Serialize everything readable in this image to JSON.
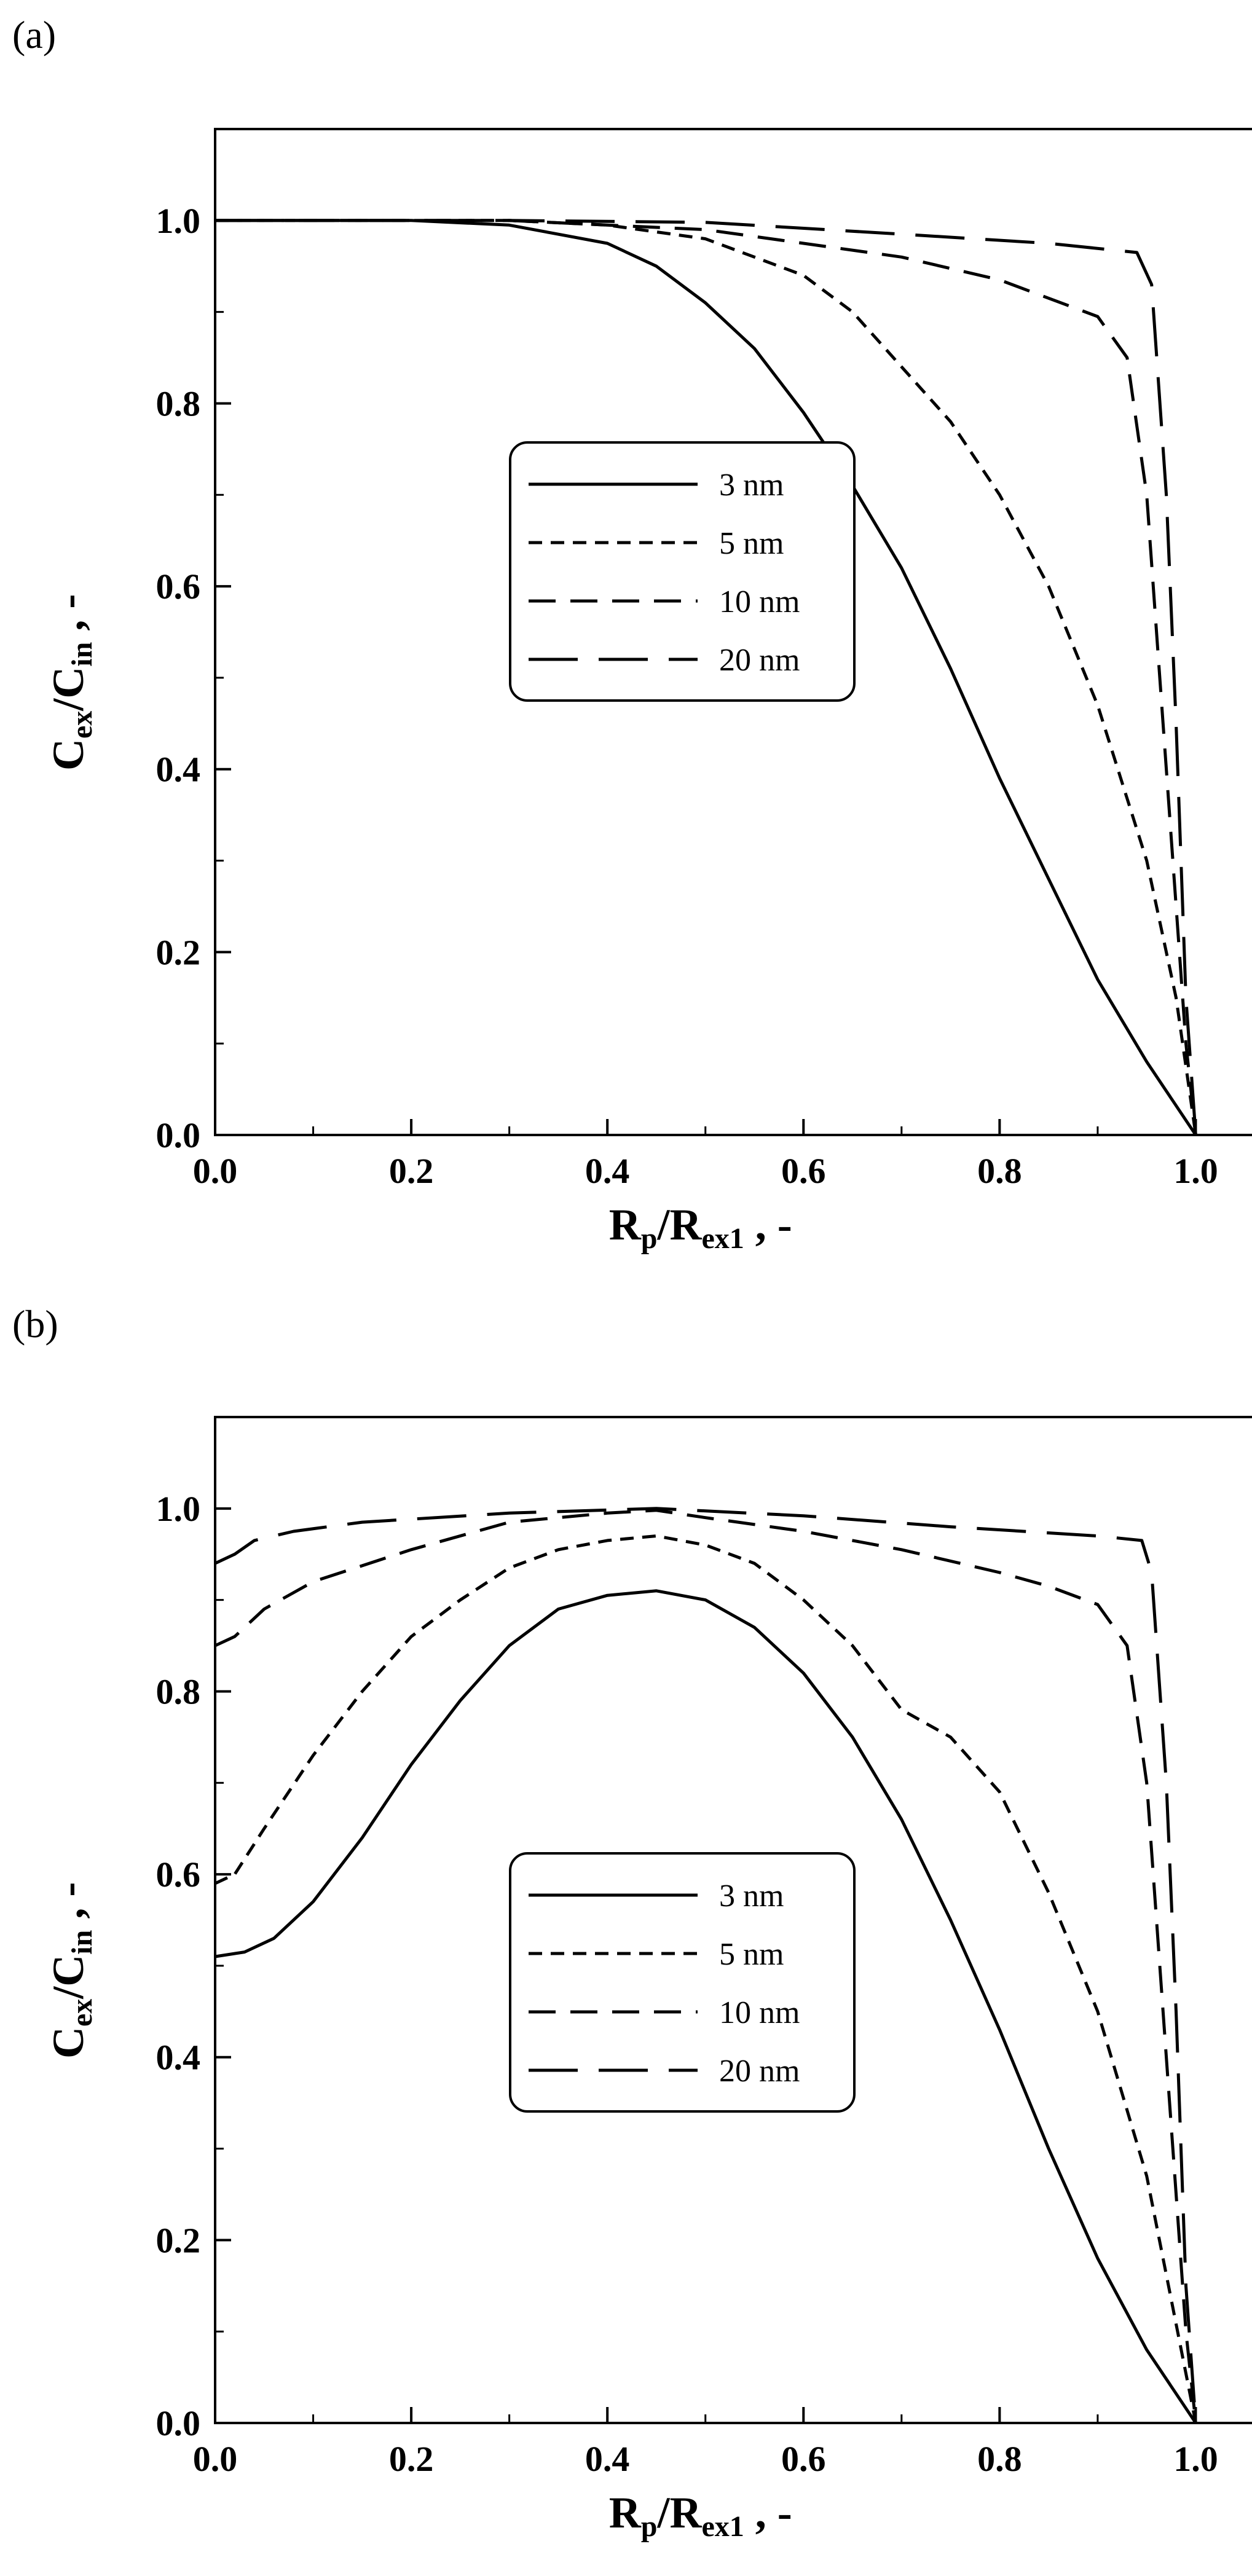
{
  "chart_data": [
    {
      "panel_label": "(a)",
      "type": "line",
      "xlabel": {
        "base": "R",
        "sub1": "p",
        "mid": "/R",
        "sub2": "ex1",
        "tail": " , -"
      },
      "ylabel": {
        "base": "C",
        "sub1": "ex",
        "mid": "/C",
        "sub2": "in",
        "tail": " , -"
      },
      "xlim": [
        0,
        1.1
      ],
      "ylim": [
        0,
        1.1
      ],
      "xticks": [
        "0.0",
        "0.2",
        "0.4",
        "0.6",
        "0.8",
        "1.0"
      ],
      "yticks": [
        "0.0",
        "0.2",
        "0.4",
        "0.6",
        "0.8",
        "1.0"
      ],
      "legend_position": "center",
      "series": [
        {
          "name": "3 nm",
          "dash": "solid",
          "x": [
            0.0,
            0.2,
            0.3,
            0.4,
            0.45,
            0.5,
            0.55,
            0.6,
            0.65,
            0.7,
            0.75,
            0.8,
            0.85,
            0.9,
            0.95,
            1.0
          ],
          "y": [
            1.0,
            1.0,
            0.995,
            0.975,
            0.95,
            0.91,
            0.86,
            0.79,
            0.71,
            0.62,
            0.51,
            0.39,
            0.28,
            0.17,
            0.08,
            0.0
          ]
        },
        {
          "name": "5 nm",
          "dash": "short",
          "x": [
            0.0,
            0.3,
            0.4,
            0.5,
            0.6,
            0.65,
            0.7,
            0.75,
            0.8,
            0.85,
            0.9,
            0.95,
            0.98,
            1.0
          ],
          "y": [
            1.0,
            1.0,
            0.995,
            0.98,
            0.94,
            0.9,
            0.84,
            0.78,
            0.7,
            0.6,
            0.47,
            0.3,
            0.15,
            0.0
          ]
        },
        {
          "name": "10 nm",
          "dash": "medium",
          "x": [
            0.0,
            0.3,
            0.5,
            0.6,
            0.7,
            0.8,
            0.85,
            0.9,
            0.93,
            0.95,
            0.97,
            0.99,
            1.0
          ],
          "y": [
            1.0,
            1.0,
            0.99,
            0.975,
            0.96,
            0.935,
            0.915,
            0.895,
            0.85,
            0.7,
            0.4,
            0.1,
            0.0
          ]
        },
        {
          "name": "20 nm",
          "dash": "long",
          "x": [
            0.0,
            0.3,
            0.5,
            0.7,
            0.85,
            0.94,
            0.955,
            0.97,
            0.98,
            0.99,
            1.0
          ],
          "y": [
            1.0,
            1.0,
            0.998,
            0.985,
            0.975,
            0.965,
            0.93,
            0.7,
            0.45,
            0.15,
            0.0
          ]
        }
      ],
      "legend": [
        "3 nm",
        "5 nm",
        "10 nm",
        "20 nm"
      ]
    },
    {
      "panel_label": "(b)",
      "type": "line",
      "xlabel": {
        "base": "R",
        "sub1": "p",
        "mid": "/R",
        "sub2": "ex1",
        "tail": " , -"
      },
      "ylabel": {
        "base": "C",
        "sub1": "ex",
        "mid": "/C",
        "sub2": "in",
        "tail": " , -"
      },
      "xlim": [
        0,
        1.1
      ],
      "ylim": [
        0,
        1.1
      ],
      "xticks": [
        "0.0",
        "0.2",
        "0.4",
        "0.6",
        "0.8",
        "1.0"
      ],
      "yticks": [
        "0.0",
        "0.2",
        "0.4",
        "0.6",
        "0.8",
        "1.0"
      ],
      "legend_position": "center",
      "series": [
        {
          "name": "3 nm",
          "dash": "solid",
          "x": [
            0.0,
            0.03,
            0.06,
            0.1,
            0.15,
            0.2,
            0.25,
            0.3,
            0.35,
            0.4,
            0.45,
            0.5,
            0.55,
            0.6,
            0.65,
            0.7,
            0.75,
            0.8,
            0.85,
            0.9,
            0.95,
            1.0
          ],
          "y": [
            0.51,
            0.515,
            0.53,
            0.57,
            0.64,
            0.72,
            0.79,
            0.85,
            0.89,
            0.905,
            0.91,
            0.9,
            0.87,
            0.82,
            0.75,
            0.66,
            0.55,
            0.43,
            0.3,
            0.18,
            0.08,
            0.0
          ]
        },
        {
          "name": "5 nm",
          "dash": "short",
          "x": [
            0.0,
            0.02,
            0.05,
            0.1,
            0.15,
            0.2,
            0.25,
            0.3,
            0.35,
            0.4,
            0.45,
            0.5,
            0.55,
            0.6,
            0.65,
            0.7,
            0.75,
            0.8,
            0.85,
            0.9,
            0.95,
            1.0
          ],
          "y": [
            0.59,
            0.6,
            0.65,
            0.73,
            0.8,
            0.86,
            0.9,
            0.935,
            0.955,
            0.965,
            0.97,
            0.96,
            0.94,
            0.9,
            0.85,
            0.78,
            0.75,
            0.69,
            0.58,
            0.45,
            0.27,
            0.0
          ]
        },
        {
          "name": "10 nm",
          "dash": "medium",
          "x": [
            0.0,
            0.02,
            0.05,
            0.1,
            0.2,
            0.3,
            0.4,
            0.45,
            0.5,
            0.6,
            0.7,
            0.8,
            0.85,
            0.9,
            0.93,
            0.95,
            0.97,
            0.99,
            1.0
          ],
          "y": [
            0.85,
            0.86,
            0.89,
            0.92,
            0.955,
            0.985,
            0.995,
            0.998,
            0.99,
            0.975,
            0.955,
            0.93,
            0.915,
            0.895,
            0.85,
            0.7,
            0.4,
            0.1,
            0.0
          ]
        },
        {
          "name": "20 nm",
          "dash": "long",
          "x": [
            0.0,
            0.02,
            0.04,
            0.08,
            0.15,
            0.3,
            0.45,
            0.6,
            0.75,
            0.9,
            0.945,
            0.955,
            0.97,
            0.98,
            0.99,
            1.0
          ],
          "y": [
            0.94,
            0.95,
            0.965,
            0.975,
            0.985,
            0.995,
            1.0,
            0.992,
            0.98,
            0.97,
            0.965,
            0.93,
            0.7,
            0.45,
            0.15,
            0.0
          ]
        }
      ],
      "legend": [
        "3 nm",
        "5 nm",
        "10 nm",
        "20 nm"
      ]
    }
  ]
}
